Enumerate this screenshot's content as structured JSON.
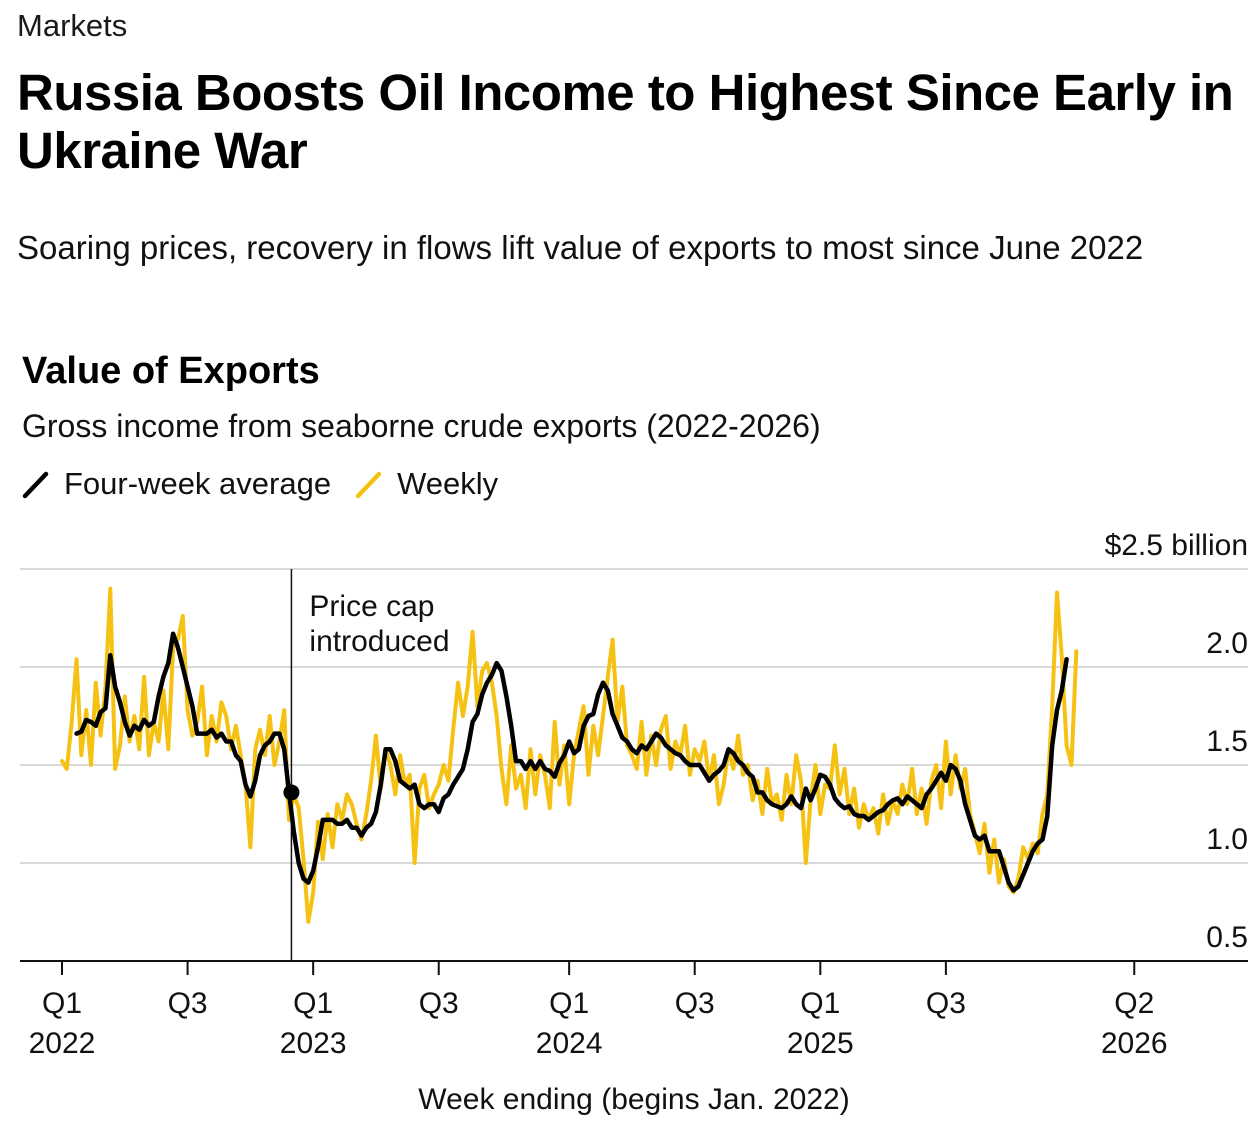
{
  "header": {
    "section": "Markets",
    "headline": "Russia Boosts Oil Income to Highest Since Early in Ukraine War",
    "subheadline": "Soaring prices, recovery in flows lift value of exports to most since June 2022"
  },
  "colors": {
    "weekly": "#F5C213",
    "average": "#000000",
    "grid": "#d9d9d9",
    "axis": "#111111"
  },
  "chart_data": {
    "type": "line",
    "title": "Value of Exports",
    "subtitle": "Gross income from seaborne crude exports (2022-2026)",
    "xlabel": "Week ending (begins Jan. 2022)",
    "ylabel": "",
    "y_unit_label": "$2.5 billion",
    "ylim": [
      0.5,
      2.5
    ],
    "yticks": [
      0.5,
      1.0,
      1.5,
      2.0,
      2.5
    ],
    "ytick_labels": [
      "0.5",
      "1.0",
      "1.5",
      "2.0",
      "$2.5 billion"
    ],
    "grid": true,
    "legend_position": "top-left",
    "legend": [
      {
        "name": "Four-week average",
        "color": "#000000"
      },
      {
        "name": "Weekly",
        "color": "#F5C213"
      }
    ],
    "x_unit": "weeks since first week of Jan. 2022",
    "xticks": [
      {
        "week": 0,
        "line1": "Q1",
        "line2": "2022"
      },
      {
        "week": 26,
        "line1": "Q3",
        "line2": ""
      },
      {
        "week": 52,
        "line1": "Q1",
        "line2": "2023"
      },
      {
        "week": 78,
        "line1": "Q3",
        "line2": ""
      },
      {
        "week": 105,
        "line1": "Q1",
        "line2": "2024"
      },
      {
        "week": 131,
        "line1": "Q3",
        "line2": ""
      },
      {
        "week": 157,
        "line1": "Q1",
        "line2": "2025"
      },
      {
        "week": 183,
        "line1": "Q3",
        "line2": ""
      },
      {
        "week": 222,
        "line1": "Q2",
        "line2": "2026"
      }
    ],
    "annotations": [
      {
        "week": 47.5,
        "lines": [
          "Price cap",
          "introduced"
        ]
      }
    ],
    "series": [
      {
        "name": "Weekly",
        "start_week": 0,
        "values": [
          1.52,
          1.48,
          1.72,
          2.04,
          1.55,
          1.78,
          1.5,
          1.92,
          1.65,
          1.9,
          2.4,
          1.48,
          1.6,
          1.85,
          1.62,
          1.75,
          1.58,
          1.95,
          1.55,
          1.72,
          1.62,
          1.88,
          1.58,
          2.1,
          2.14,
          2.26,
          1.78,
          1.65,
          1.72,
          1.9,
          1.55,
          1.75,
          1.62,
          1.82,
          1.75,
          1.58,
          1.7,
          1.55,
          1.4,
          1.08,
          1.58,
          1.68,
          1.55,
          1.75,
          1.5,
          1.62,
          1.78,
          1.22,
          1.35,
          1.28,
          1.02,
          0.7,
          0.85,
          1.21,
          1.02,
          1.25,
          1.08,
          1.3,
          1.22,
          1.35,
          1.3,
          1.2,
          1.12,
          1.25,
          1.42,
          1.65,
          1.38,
          1.58,
          1.5,
          1.35,
          1.55,
          1.4,
          1.45,
          1.0,
          1.38,
          1.45,
          1.28,
          1.35,
          1.4,
          1.5,
          1.42,
          1.68,
          1.92,
          1.75,
          1.9,
          2.18,
          1.8,
          1.98,
          2.02,
          1.92,
          1.75,
          1.48,
          1.3,
          1.6,
          1.38,
          1.45,
          1.28,
          1.58,
          1.35,
          1.55,
          1.45,
          1.28,
          1.72,
          1.4,
          1.6,
          1.3,
          1.55,
          1.68,
          1.8,
          1.45,
          1.7,
          1.55,
          1.75,
          1.95,
          2.14,
          1.72,
          1.9,
          1.6,
          1.55,
          1.48,
          1.72,
          1.45,
          1.65,
          1.5,
          1.68,
          1.75,
          1.48,
          1.62,
          1.55,
          1.7,
          1.45,
          1.58,
          1.52,
          1.62,
          1.42,
          1.55,
          1.3,
          1.4,
          1.58,
          1.48,
          1.65,
          1.45,
          1.5,
          1.32,
          1.42,
          1.25,
          1.48,
          1.3,
          1.35,
          1.22,
          1.45,
          1.3,
          1.55,
          1.42,
          1.0,
          1.32,
          1.5,
          1.25,
          1.4,
          1.38,
          1.6,
          1.35,
          1.48,
          1.25,
          1.38,
          1.18,
          1.3,
          1.22,
          1.28,
          1.15,
          1.35,
          1.2,
          1.32,
          1.25,
          1.4,
          1.3,
          1.48,
          1.25,
          1.38,
          1.2,
          1.42,
          1.5,
          1.28,
          1.62,
          1.35,
          1.55,
          1.38,
          1.48,
          1.25,
          1.15,
          1.05,
          1.2,
          0.95,
          1.12,
          0.9,
          1.02,
          0.88,
          0.85,
          0.92,
          1.08,
          1.02,
          1.1,
          1.05,
          1.25,
          1.35,
          1.8,
          2.38,
          2.05,
          1.6,
          1.5,
          2.08
        ]
      },
      {
        "name": "Four-week average",
        "start_week": 3,
        "values": [
          1.66,
          1.67,
          1.73,
          1.72,
          1.7,
          1.77,
          1.79,
          2.06,
          1.9,
          1.82,
          1.72,
          1.65,
          1.7,
          1.68,
          1.73,
          1.7,
          1.72,
          1.85,
          1.95,
          2.02,
          2.17,
          2.1,
          2.0,
          1.9,
          1.8,
          1.66,
          1.66,
          1.66,
          1.68,
          1.64,
          1.66,
          1.62,
          1.62,
          1.55,
          1.52,
          1.4,
          1.34,
          1.42,
          1.55,
          1.6,
          1.62,
          1.66,
          1.66,
          1.58,
          1.36,
          1.16,
          1.0,
          0.92,
          0.9,
          0.96,
          1.08,
          1.22,
          1.22,
          1.22,
          1.2,
          1.2,
          1.22,
          1.18,
          1.18,
          1.14,
          1.18,
          1.2,
          1.26,
          1.4,
          1.58,
          1.58,
          1.52,
          1.42,
          1.4,
          1.38,
          1.4,
          1.3,
          1.28,
          1.3,
          1.3,
          1.26,
          1.33,
          1.35,
          1.4,
          1.44,
          1.48,
          1.58,
          1.72,
          1.76,
          1.86,
          1.92,
          1.96,
          2.02,
          1.98,
          1.85,
          1.7,
          1.52,
          1.52,
          1.48,
          1.52,
          1.48,
          1.52,
          1.48,
          1.47,
          1.44,
          1.51,
          1.55,
          1.62,
          1.56,
          1.58,
          1.7,
          1.75,
          1.76,
          1.86,
          1.92,
          1.88,
          1.76,
          1.7,
          1.64,
          1.62,
          1.58,
          1.56,
          1.6,
          1.58,
          1.62,
          1.66,
          1.64,
          1.6,
          1.58,
          1.56,
          1.55,
          1.52,
          1.5,
          1.5,
          1.5,
          1.46,
          1.42,
          1.45,
          1.47,
          1.5,
          1.58,
          1.56,
          1.52,
          1.5,
          1.46,
          1.44,
          1.36,
          1.36,
          1.32,
          1.3,
          1.29,
          1.28,
          1.3,
          1.34,
          1.3,
          1.28,
          1.38,
          1.32,
          1.38,
          1.45,
          1.44,
          1.4,
          1.33,
          1.3,
          1.28,
          1.29,
          1.25,
          1.24,
          1.24,
          1.22,
          1.24,
          1.26,
          1.27,
          1.3,
          1.32,
          1.33,
          1.3,
          1.34,
          1.32,
          1.3,
          1.28,
          1.35,
          1.38,
          1.42,
          1.46,
          1.42,
          1.5,
          1.48,
          1.42,
          1.3,
          1.22,
          1.14,
          1.12,
          1.14,
          1.06,
          1.06,
          1.06,
          0.98,
          0.9,
          0.86,
          0.88,
          0.94,
          1.0,
          1.06,
          1.1,
          1.12,
          1.24,
          1.6,
          1.78,
          1.88,
          2.04
        ],
        "markers": [
          {
            "week": 47.5,
            "value": 1.36
          }
        ]
      }
    ]
  }
}
